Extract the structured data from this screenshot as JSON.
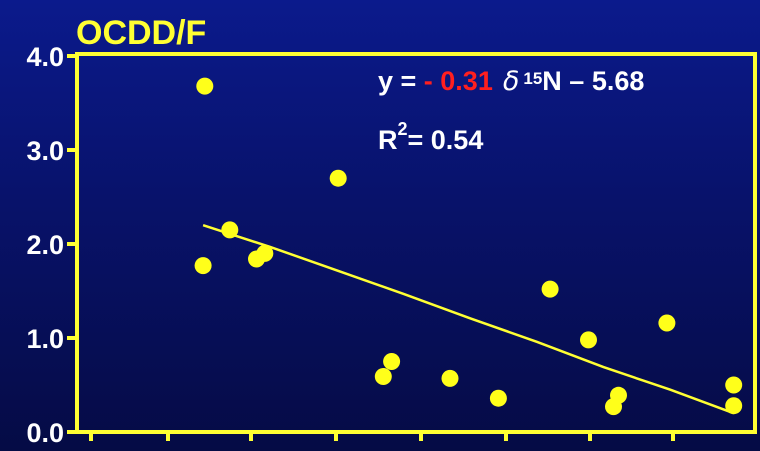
{
  "chart_data": {
    "type": "scatter",
    "title": "OCDD/F",
    "xlabel": "",
    "ylabel": "",
    "ylim": [
      0,
      4
    ],
    "xlim": [
      0,
      19
    ],
    "yticks": [
      "0.0",
      "1.0",
      "2.0",
      "3.0",
      "4.0"
    ],
    "grid": false,
    "points": [
      {
        "x": 3.05,
        "y": 3.68
      },
      {
        "x": 3.0,
        "y": 1.77
      },
      {
        "x": 3.8,
        "y": 2.15
      },
      {
        "x": 4.6,
        "y": 1.84
      },
      {
        "x": 4.85,
        "y": 1.9
      },
      {
        "x": 7.05,
        "y": 2.7
      },
      {
        "x": 8.4,
        "y": 0.59
      },
      {
        "x": 8.65,
        "y": 0.75
      },
      {
        "x": 10.4,
        "y": 0.57
      },
      {
        "x": 11.85,
        "y": 0.36
      },
      {
        "x": 13.4,
        "y": 1.52
      },
      {
        "x": 14.55,
        "y": 0.98
      },
      {
        "x": 15.3,
        "y": 0.27
      },
      {
        "x": 15.45,
        "y": 0.39
      },
      {
        "x": 16.9,
        "y": 1.16
      },
      {
        "x": 18.9,
        "y": 0.5
      },
      {
        "x": 18.9,
        "y": 0.28
      }
    ],
    "trendline": [
      {
        "x": 3.0,
        "y": 2.2
      },
      {
        "x": 5.0,
        "y": 1.97
      },
      {
        "x": 7.0,
        "y": 1.72
      },
      {
        "x": 9.0,
        "y": 1.47
      },
      {
        "x": 11.0,
        "y": 1.21
      },
      {
        "x": 13.0,
        "y": 0.96
      },
      {
        "x": 15.0,
        "y": 0.69
      },
      {
        "x": 17.0,
        "y": 0.45
      },
      {
        "x": 18.9,
        "y": 0.2
      }
    ],
    "equation": {
      "prefix": "y = ",
      "coef": "- 0.31",
      "delta": "δ",
      "sup": "15",
      "suffix": "N – 5.68"
    },
    "r2": {
      "label": "R",
      "sup": "2",
      "value": "= 0.54"
    }
  },
  "colors": {
    "axis": "#ffff33",
    "marker": "#ffff1a",
    "line": "#ffff33",
    "text": "#ffffff",
    "coef": "#ff1f1f"
  }
}
